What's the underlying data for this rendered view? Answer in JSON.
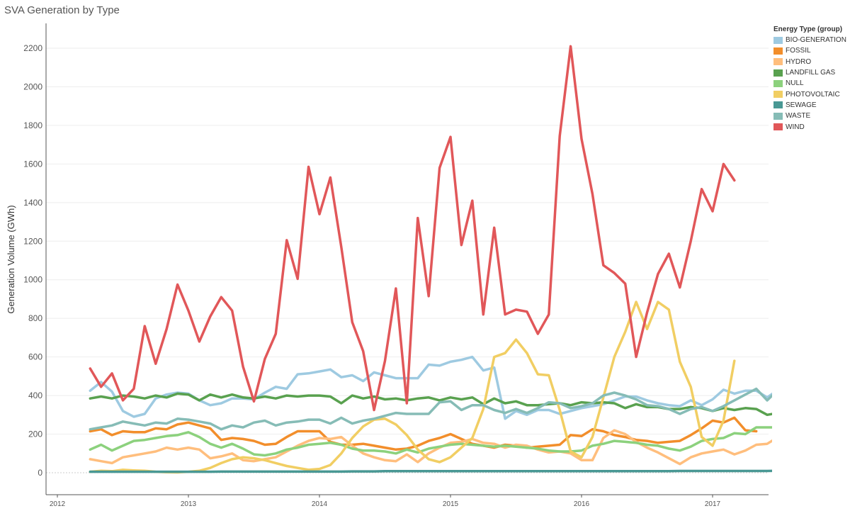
{
  "title": "SVA Generation by Type",
  "chart_data": {
    "type": "line",
    "title": "SVA Generation by Type",
    "xlabel": "",
    "ylabel": "Generation Volume (GWh)",
    "ylim": [
      0,
      2200
    ],
    "y_ticks": [
      0,
      200,
      400,
      600,
      800,
      1000,
      1200,
      1400,
      1600,
      1800,
      2000,
      2200
    ],
    "x_ticks": [
      2012,
      2013,
      2014,
      2015,
      2016,
      2017
    ],
    "x_labels": [
      "2012",
      "2013",
      "2014",
      "2015",
      "2016",
      "2017"
    ],
    "grid": "horizontal",
    "legend_position": "top-right",
    "legend_title": "Energy Type (group)",
    "x_start": 2012.25,
    "x_step_months": 1,
    "series": [
      {
        "name": "BIO-GENERATION",
        "color": "#9ecae1",
        "values": [
          425,
          470,
          420,
          320,
          290,
          305,
          385,
          405,
          415,
          410,
          375,
          350,
          360,
          385,
          385,
          380,
          415,
          445,
          435,
          510,
          515,
          525,
          535,
          495,
          505,
          475,
          520,
          505,
          490,
          490,
          490,
          560,
          555,
          575,
          585,
          600,
          530,
          545,
          280,
          320,
          300,
          325,
          325,
          305,
          320,
          335,
          345,
          355,
          375,
          395,
          395,
          375,
          360,
          350,
          345,
          375,
          350,
          380,
          430,
          410,
          425,
          425,
          390,
          430
        ]
      },
      {
        "name": "FOSSIL",
        "color": "#f28e2b",
        "values": [
          215,
          225,
          195,
          215,
          210,
          210,
          230,
          225,
          250,
          260,
          245,
          230,
          170,
          180,
          175,
          165,
          145,
          150,
          185,
          215,
          215,
          215,
          160,
          145,
          145,
          150,
          140,
          130,
          120,
          125,
          140,
          165,
          180,
          200,
          175,
          150,
          140,
          130,
          145,
          140,
          130,
          135,
          140,
          145,
          195,
          190,
          225,
          215,
          195,
          185,
          170,
          165,
          155,
          160,
          165,
          195,
          230,
          270,
          260,
          285,
          220,
          215
        ]
      },
      {
        "name": "HYDRO",
        "color": "#ffbe7d",
        "values": [
          70,
          60,
          50,
          80,
          90,
          100,
          110,
          130,
          120,
          130,
          120,
          75,
          85,
          100,
          65,
          60,
          70,
          80,
          110,
          140,
          165,
          180,
          175,
          185,
          140,
          100,
          80,
          65,
          60,
          95,
          55,
          100,
          130,
          155,
          160,
          175,
          155,
          150,
          130,
          145,
          140,
          120,
          105,
          110,
          100,
          65,
          65,
          180,
          220,
          200,
          160,
          130,
          105,
          75,
          45,
          80,
          100,
          110,
          120,
          95,
          115,
          145,
          150,
          185
        ]
      },
      {
        "name": "LANDFILL GAS",
        "color": "#59a14f",
        "values": [
          385,
          395,
          385,
          400,
          395,
          385,
          400,
          390,
          410,
          405,
          375,
          405,
          390,
          405,
          390,
          385,
          395,
          385,
          400,
          395,
          400,
          400,
          395,
          360,
          400,
          385,
          395,
          380,
          385,
          375,
          385,
          390,
          375,
          390,
          380,
          390,
          355,
          385,
          360,
          370,
          350,
          350,
          355,
          360,
          350,
          365,
          360,
          365,
          360,
          335,
          355,
          340,
          340,
          330,
          330,
          340,
          335,
          320,
          335,
          325,
          335,
          330,
          300,
          310
        ]
      },
      {
        "name": "NULL",
        "color": "#8cd17d",
        "values": [
          120,
          145,
          115,
          140,
          165,
          170,
          180,
          190,
          195,
          210,
          185,
          150,
          130,
          150,
          125,
          95,
          90,
          100,
          120,
          130,
          145,
          150,
          155,
          145,
          125,
          115,
          115,
          110,
          100,
          120,
          105,
          125,
          135,
          145,
          150,
          145,
          140,
          135,
          140,
          135,
          130,
          125,
          115,
          110,
          110,
          115,
          140,
          150,
          165,
          160,
          155,
          145,
          140,
          125,
          115,
          135,
          165,
          175,
          180,
          205,
          200,
          235,
          235,
          235
        ]
      },
      {
        "name": "PHOTOVOLTAIC",
        "color": "#f1ce63",
        "values": [
          5,
          10,
          8,
          15,
          12,
          10,
          5,
          3,
          2,
          5,
          10,
          25,
          50,
          70,
          80,
          75,
          65,
          50,
          35,
          25,
          15,
          20,
          40,
          100,
          180,
          240,
          275,
          280,
          250,
          195,
          120,
          70,
          55,
          80,
          130,
          180,
          330,
          600,
          620,
          690,
          620,
          510,
          505,
          325,
          110,
          80,
          185,
          390,
          600,
          730,
          885,
          745,
          885,
          845,
          575,
          445,
          185,
          140,
          270,
          580
        ]
      },
      {
        "name": "SEWAGE",
        "color": "#499894",
        "values": [
          5,
          5,
          5,
          5,
          5,
          5,
          5,
          5,
          5,
          5,
          5,
          5,
          6,
          6,
          6,
          6,
          6,
          6,
          6,
          6,
          6,
          6,
          6,
          6,
          7,
          7,
          7,
          8,
          8,
          8,
          8,
          8,
          8,
          8,
          8,
          8,
          8,
          8,
          8,
          8,
          8,
          8,
          8,
          8,
          8,
          8,
          8,
          8,
          8,
          8,
          8,
          8,
          8,
          8,
          9,
          9,
          9,
          9,
          9,
          9,
          9,
          9,
          9,
          10
        ]
      },
      {
        "name": "WASTE",
        "color": "#86bcb6",
        "values": [
          225,
          235,
          245,
          265,
          255,
          245,
          260,
          255,
          280,
          275,
          265,
          255,
          225,
          245,
          235,
          260,
          270,
          245,
          260,
          265,
          275,
          275,
          255,
          285,
          255,
          270,
          280,
          295,
          310,
          305,
          305,
          305,
          365,
          370,
          325,
          350,
          350,
          325,
          310,
          330,
          310,
          335,
          365,
          360,
          335,
          345,
          360,
          400,
          415,
          400,
          380,
          350,
          345,
          330,
          305,
          330,
          340,
          320,
          345,
          375,
          405,
          435,
          375,
          430
        ]
      },
      {
        "name": "WIND",
        "color": "#e15759",
        "values": [
          540,
          445,
          515,
          375,
          435,
          760,
          565,
          745,
          975,
          840,
          680,
          810,
          910,
          840,
          550,
          370,
          590,
          720,
          1205,
          1005,
          1585,
          1340,
          1530,
          1170,
          780,
          630,
          325,
          580,
          955,
          360,
          1320,
          915,
          1580,
          1740,
          1180,
          1410,
          820,
          1270,
          820,
          845,
          835,
          720,
          820,
          1745,
          2210,
          1730,
          1445,
          1075,
          1035,
          980,
          600,
          830,
          1030,
          1135,
          960,
          1200,
          1470,
          1355,
          1600,
          1515
        ]
      }
    ]
  },
  "legend": {
    "title": "Energy Type (group)",
    "items": [
      {
        "label": "BIO-GENERATION",
        "color": "#9ecae1"
      },
      {
        "label": "FOSSIL",
        "color": "#f28e2b"
      },
      {
        "label": "HYDRO",
        "color": "#ffbe7d"
      },
      {
        "label": "LANDFILL GAS",
        "color": "#59a14f"
      },
      {
        "label": "NULL",
        "color": "#8cd17d"
      },
      {
        "label": "PHOTOVOLTAIC",
        "color": "#f1ce63"
      },
      {
        "label": "SEWAGE",
        "color": "#499894"
      },
      {
        "label": "WASTE",
        "color": "#86bcb6"
      },
      {
        "label": "WIND",
        "color": "#e15759"
      }
    ]
  }
}
